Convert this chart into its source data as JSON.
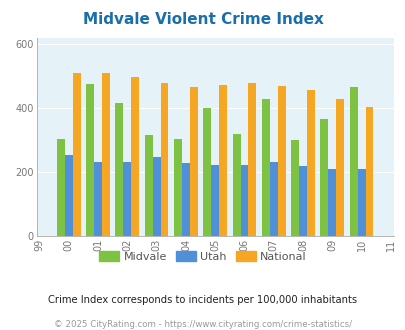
{
  "title": "Midvale Violent Crime Index",
  "all_years_labels": [
    "99",
    "00",
    "01",
    "02",
    "03",
    "04",
    "05",
    "06",
    "07",
    "08",
    "09",
    "10",
    "11"
  ],
  "data_years": [
    2000,
    2001,
    2002,
    2003,
    2004,
    2005,
    2006,
    2007,
    2008,
    2009,
    2010
  ],
  "midvale": [
    305,
    475,
    415,
    315,
    305,
    400,
    320,
    430,
    300,
    365,
    465
  ],
  "utah": [
    255,
    232,
    232,
    248,
    228,
    222,
    222,
    232,
    218,
    210,
    210
  ],
  "national": [
    510,
    510,
    498,
    478,
    465,
    472,
    478,
    468,
    458,
    430,
    405
  ],
  "bar_colors": {
    "midvale": "#7dc242",
    "utah": "#4f90d9",
    "national": "#f5a623"
  },
  "ylim": [
    0,
    620
  ],
  "yticks": [
    0,
    200,
    400,
    600
  ],
  "background_color": "#e5f2f7",
  "title_color": "#1a6faa",
  "legend_labels": [
    "Midvale",
    "Utah",
    "National"
  ],
  "footer_text1": "Crime Index corresponds to incidents per 100,000 inhabitants",
  "footer_text2": "© 2025 CityRating.com - https://www.cityrating.com/crime-statistics/",
  "bar_width": 0.27
}
